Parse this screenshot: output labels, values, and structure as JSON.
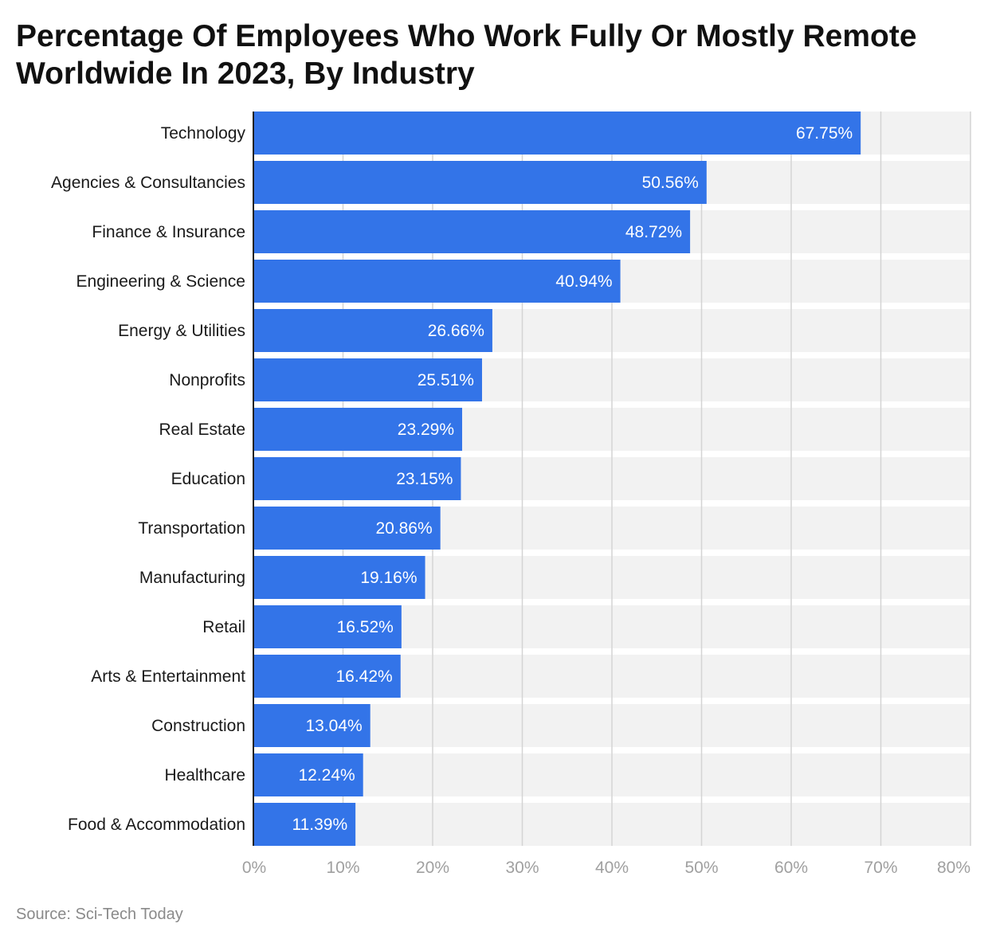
{
  "title": "Percentage Of Employees Who Work Fully Or Mostly Remote Worldwide In 2023, By Industry",
  "source": "Source: Sci-Tech Today",
  "colors": {
    "bar": "#3374e8",
    "band": "#f2f2f2",
    "grid": "#d4d4d4",
    "axis": "#222222"
  },
  "chart_data": {
    "type": "bar",
    "orientation": "horizontal",
    "title": "Percentage Of Employees Who Work Fully Or Mostly Remote Worldwide In 2023, By Industry",
    "categories": [
      "Technology",
      "Agencies & Consultancies",
      "Finance & Insurance",
      "Engineering & Science",
      "Energy & Utilities",
      "Nonprofits",
      "Real Estate",
      "Education",
      "Transportation",
      "Manufacturing",
      "Retail",
      "Arts & Entertainment",
      "Construction",
      "Healthcare",
      "Food & Accommodation"
    ],
    "values": [
      67.75,
      50.56,
      48.72,
      40.94,
      26.66,
      25.51,
      23.29,
      23.15,
      20.86,
      19.16,
      16.52,
      16.42,
      13.04,
      12.24,
      11.39
    ],
    "data_labels": [
      "67.75%",
      "50.56%",
      "48.72%",
      "40.94%",
      "26.66%",
      "25.51%",
      "23.29%",
      "23.15%",
      "20.86%",
      "19.16%",
      "16.52%",
      "16.42%",
      "13.04%",
      "12.24%",
      "11.39%"
    ],
    "xlim": [
      0,
      80
    ],
    "x_ticks": [
      0,
      10,
      20,
      30,
      40,
      50,
      60,
      70,
      80
    ],
    "x_tick_labels": [
      "0%",
      "10%",
      "20%",
      "30%",
      "40%",
      "50%",
      "60%",
      "70%",
      "80%"
    ],
    "xlabel": "",
    "ylabel": "",
    "grid": true,
    "legend": false
  }
}
